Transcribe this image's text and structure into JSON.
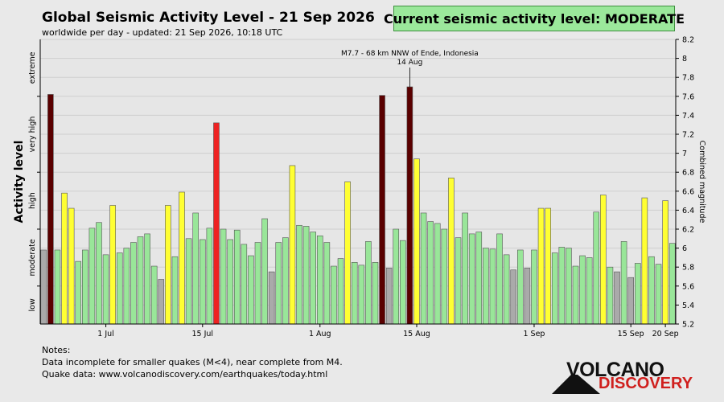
{
  "header": {
    "title": "Global Seismic Activity Level - 21 Sep 2026",
    "subtitle": "worldwide per day - updated: 21 Sep 2026, 10:18 UTC"
  },
  "status_badge": "Current seismic activity level: MODERATE",
  "notes": {
    "heading": "Notes:",
    "line1": "Data incomplete for smaller quakes (M<4), near complete from M4.",
    "line2": "Quake data: www.volcanodiscovery.com/earthquakes/today.html"
  },
  "logo": {
    "word1": "VOLCANO",
    "word2": "DISCOVERY"
  },
  "colors": {
    "gray": "#aaaaaa",
    "green": "#99e699",
    "yellow": "#ffff33",
    "red": "#ee2222",
    "darkred": "#5a0000"
  },
  "chart_data": {
    "type": "bar",
    "ylabel": "Activity level",
    "ylabel_right": "Combined magnitude",
    "level_labels": [
      "low",
      "moderate",
      "high",
      "very high",
      "extreme"
    ],
    "ylim": [
      5.2,
      8.2
    ],
    "ticks_right": [
      "5.2",
      "5.4",
      "5.6",
      "5.8",
      "6",
      "6.2",
      "6.4",
      "6.6",
      "6.8",
      "7",
      "7.2",
      "7.4",
      "7.6",
      "7.8",
      "8",
      "8.2"
    ],
    "grid": true,
    "x_tick_labels": [
      {
        "label": "1 Jul",
        "index": 9
      },
      {
        "label": "15 Jul",
        "index": 23
      },
      {
        "label": "1 Aug",
        "index": 40
      },
      {
        "label": "15 Aug",
        "index": 54
      },
      {
        "label": "1 Sep",
        "index": 71
      },
      {
        "label": "15 Sep",
        "index": 85
      },
      {
        "label": "20 Sep",
        "index": 90
      }
    ],
    "annotation": {
      "text": "M7.7 - 68 km NNW of Ende, Indonesia",
      "date": "14 Aug",
      "index": 53
    },
    "values": [
      5.98,
      7.62,
      5.98,
      6.58,
      6.42,
      5.86,
      5.98,
      6.21,
      6.27,
      5.93,
      6.45,
      5.95,
      6.0,
      6.06,
      6.12,
      6.15,
      5.81,
      5.67,
      6.45,
      5.91,
      6.59,
      6.1,
      6.37,
      6.09,
      6.21,
      7.32,
      6.2,
      6.09,
      6.19,
      6.04,
      5.92,
      6.06,
      6.31,
      5.75,
      6.06,
      6.11,
      6.87,
      6.24,
      6.23,
      6.17,
      6.13,
      6.06,
      5.81,
      5.89,
      6.7,
      5.85,
      5.82,
      6.07,
      5.85,
      7.61,
      5.79,
      6.2,
      6.08,
      7.7,
      6.94,
      6.37,
      6.28,
      6.26,
      6.2,
      6.74,
      6.11,
      6.37,
      6.15,
      6.17,
      6.0,
      5.99,
      6.15,
      5.93,
      5.77,
      5.98,
      5.79,
      5.98,
      6.42,
      6.42,
      5.95,
      6.01,
      6.0,
      5.81,
      5.92,
      5.9,
      6.38,
      6.56,
      5.8,
      5.75,
      6.07,
      5.69,
      5.84,
      6.53,
      5.91,
      5.83,
      6.5,
      6.05
    ],
    "categories": [
      "gray",
      "darkred",
      "green",
      "yellow",
      "yellow",
      "green",
      "green",
      "green",
      "green",
      "green",
      "yellow",
      "green",
      "green",
      "green",
      "green",
      "green",
      "green",
      "gray",
      "yellow",
      "green",
      "yellow",
      "green",
      "green",
      "green",
      "green",
      "red",
      "green",
      "green",
      "green",
      "green",
      "green",
      "green",
      "green",
      "gray",
      "green",
      "green",
      "yellow",
      "green",
      "green",
      "green",
      "green",
      "green",
      "green",
      "green",
      "yellow",
      "green",
      "green",
      "green",
      "green",
      "darkred",
      "gray",
      "green",
      "green",
      "darkred",
      "yellow",
      "green",
      "green",
      "green",
      "green",
      "yellow",
      "green",
      "green",
      "green",
      "green",
      "green",
      "green",
      "green",
      "green",
      "gray",
      "green",
      "gray",
      "green",
      "yellow",
      "yellow",
      "green",
      "green",
      "green",
      "green",
      "green",
      "green",
      "green",
      "yellow",
      "green",
      "gray",
      "green",
      "gray",
      "green",
      "yellow",
      "green",
      "green",
      "yellow",
      "green"
    ]
  }
}
